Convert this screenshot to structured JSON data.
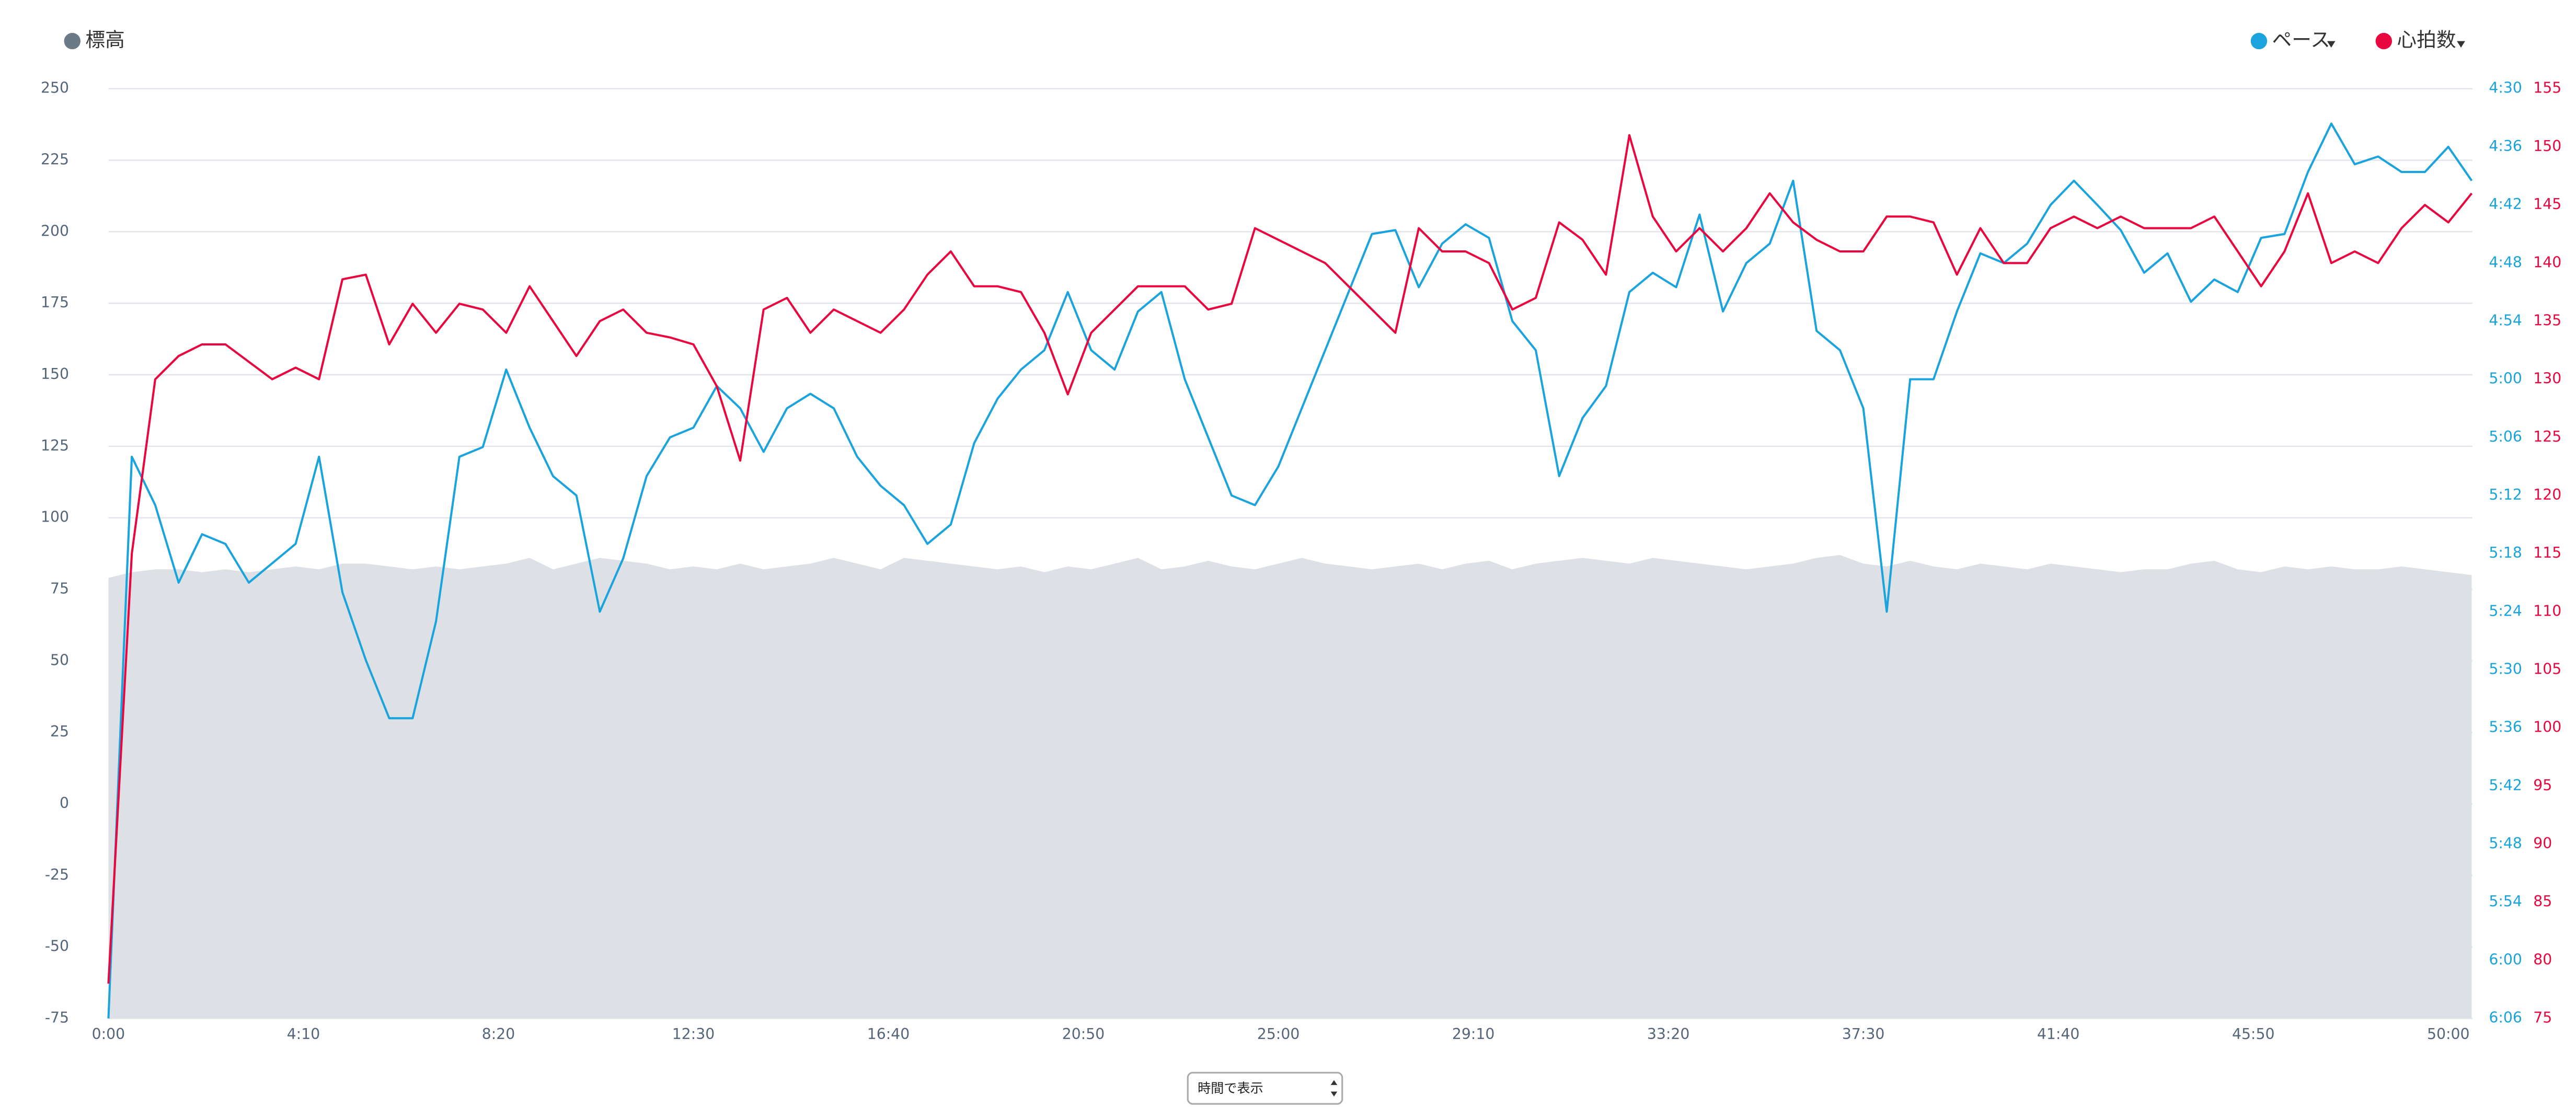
{
  "chart_data": {
    "type": "line",
    "x": [
      0,
      30,
      60,
      90,
      120,
      150,
      180,
      210,
      240,
      270,
      300,
      330,
      360,
      390,
      420,
      450,
      480,
      510,
      540,
      570,
      600,
      630,
      660,
      690,
      720,
      750,
      780,
      810,
      840,
      870,
      900,
      930,
      960,
      990,
      1020,
      1050,
      1080,
      1110,
      1140,
      1170,
      1200,
      1230,
      1260,
      1290,
      1320,
      1350,
      1380,
      1410,
      1440,
      1470,
      1500,
      1530,
      1560,
      1590,
      1620,
      1650,
      1680,
      1710,
      1740,
      1770,
      1800,
      1830,
      1860,
      1890,
      1920,
      1950,
      1980,
      2010,
      2040,
      2070,
      2100,
      2130,
      2160,
      2190,
      2220,
      2250,
      2280,
      2310,
      2340,
      2370,
      2400,
      2430,
      2460,
      2490,
      2520,
      2550,
      2580,
      2610,
      2640,
      2670,
      2700,
      2730,
      2760,
      2790,
      2820,
      2850,
      2880,
      2910,
      2940,
      2970,
      3000,
      3030
    ],
    "xlim": [
      0,
      3031
    ],
    "xticks": [
      {
        "value": 0,
        "label": "0:00"
      },
      {
        "value": 250,
        "label": "4:10"
      },
      {
        "value": 500,
        "label": "8:20"
      },
      {
        "value": 750,
        "label": "12:30"
      },
      {
        "value": 1000,
        "label": "16:40"
      },
      {
        "value": 1250,
        "label": "20:50"
      },
      {
        "value": 1500,
        "label": "25:00"
      },
      {
        "value": 1750,
        "label": "29:10"
      },
      {
        "value": 2000,
        "label": "33:20"
      },
      {
        "value": 2250,
        "label": "37:30"
      },
      {
        "value": 2500,
        "label": "41:40"
      },
      {
        "value": 2750,
        "label": "45:50"
      },
      {
        "value": 3000,
        "label": "50:00"
      }
    ],
    "ylim": [
      -75,
      250
    ],
    "yticks": [
      -75,
      -50,
      -25,
      0,
      25,
      50,
      75,
      100,
      125,
      150,
      175,
      200,
      225,
      250
    ],
    "y2lim": [
      366,
      270
    ],
    "y2ticks": [
      {
        "value": 270,
        "label": "4:30"
      },
      {
        "value": 276,
        "label": "4:36"
      },
      {
        "value": 282,
        "label": "4:42"
      },
      {
        "value": 288,
        "label": "4:48"
      },
      {
        "value": 294,
        "label": "4:54"
      },
      {
        "value": 300,
        "label": "5:00"
      },
      {
        "value": 306,
        "label": "5:06"
      },
      {
        "value": 312,
        "label": "5:12"
      },
      {
        "value": 318,
        "label": "5:18"
      },
      {
        "value": 324,
        "label": "5:24"
      },
      {
        "value": 330,
        "label": "5:30"
      },
      {
        "value": 336,
        "label": "5:36"
      },
      {
        "value": 342,
        "label": "5:42"
      },
      {
        "value": 348,
        "label": "5:48"
      },
      {
        "value": 354,
        "label": "5:54"
      },
      {
        "value": 360,
        "label": "6:00"
      },
      {
        "value": 366,
        "label": "6:06"
      }
    ],
    "y3lim": [
      75,
      155
    ],
    "y3ticks": [
      75,
      80,
      85,
      90,
      95,
      100,
      105,
      110,
      115,
      120,
      125,
      130,
      135,
      140,
      145,
      150,
      155
    ],
    "grid": true,
    "series": [
      {
        "name": "標高",
        "color": "#dde1e6",
        "legend_color": "#6b7a86",
        "axis": "y",
        "fill": true,
        "values": [
          79,
          81,
          82,
          82,
          81,
          82,
          81,
          82,
          83,
          82,
          84,
          84,
          83,
          82,
          83,
          82,
          83,
          84,
          86,
          82,
          84,
          86,
          85,
          84,
          82,
          83,
          82,
          84,
          82,
          83,
          84,
          86,
          84,
          82,
          86,
          85,
          84,
          83,
          82,
          83,
          81,
          83,
          82,
          84,
          86,
          82,
          83,
          85,
          83,
          82,
          84,
          86,
          84,
          83,
          82,
          83,
          84,
          82,
          84,
          85,
          82,
          84,
          85,
          86,
          85,
          84,
          86,
          85,
          84,
          83,
          82,
          83,
          84,
          86,
          87,
          84,
          83,
          85,
          83,
          82,
          84,
          83,
          82,
          84,
          83,
          82,
          81,
          82,
          82,
          84,
          85,
          82,
          81,
          83,
          82,
          83,
          82,
          82,
          83,
          82,
          81,
          80
        ]
      },
      {
        "name": "ペース",
        "color": "#1aa3dd",
        "axis": "y2",
        "values": [
          366,
          308,
          313,
          321,
          316,
          317,
          321,
          319,
          317,
          308,
          322,
          329,
          335,
          335,
          325,
          308,
          307,
          299,
          305,
          310,
          312,
          324,
          318.5,
          310,
          306,
          305,
          300.7,
          303,
          307.5,
          303,
          301.5,
          303,
          308,
          311,
          313,
          317,
          315,
          306.6,
          302,
          299,
          297,
          291,
          297,
          299,
          293,
          291,
          300,
          306,
          312,
          313,
          309,
          303,
          297,
          291,
          285,
          284.6,
          290.5,
          286,
          284,
          285.4,
          294,
          297,
          310,
          304,
          300.7,
          291,
          289,
          290.5,
          283,
          293,
          288,
          286,
          279.5,
          295,
          297,
          303,
          324,
          300,
          300,
          293,
          287,
          288,
          286,
          282,
          279.5,
          282,
          284.6,
          289,
          287,
          292,
          289.7,
          291,
          285.4,
          285,
          278.6,
          273.6,
          277.8,
          277,
          278.6,
          278.6,
          276,
          279.5
        ]
      },
      {
        "name": "心拍数",
        "color": "#e8073f",
        "axis": "y3",
        "values": [
          78,
          115,
          130,
          132,
          133,
          133,
          131.5,
          130,
          131,
          130,
          138.6,
          139,
          133,
          136.5,
          134,
          136.5,
          136,
          134,
          138,
          135,
          132,
          135,
          136,
          134,
          133.6,
          133,
          129.4,
          123,
          136,
          137,
          134,
          136,
          135,
          134,
          136,
          139,
          141,
          138,
          138,
          137.5,
          134,
          128.7,
          134,
          136,
          138,
          138,
          138,
          136,
          136.5,
          143,
          142,
          141,
          140,
          138,
          136,
          134,
          143,
          141,
          141,
          140,
          136,
          137,
          143.5,
          142,
          139,
          151,
          144,
          141,
          143,
          141,
          143,
          146,
          143.5,
          142,
          141,
          141,
          144,
          144,
          143.5,
          139,
          143,
          140,
          140,
          143,
          144,
          143,
          144,
          143,
          143,
          143,
          144,
          141,
          138,
          141,
          146,
          140,
          141,
          140,
          143,
          145,
          143.5,
          146
        ]
      }
    ]
  },
  "controls": {
    "view_select": "時間で表示"
  }
}
